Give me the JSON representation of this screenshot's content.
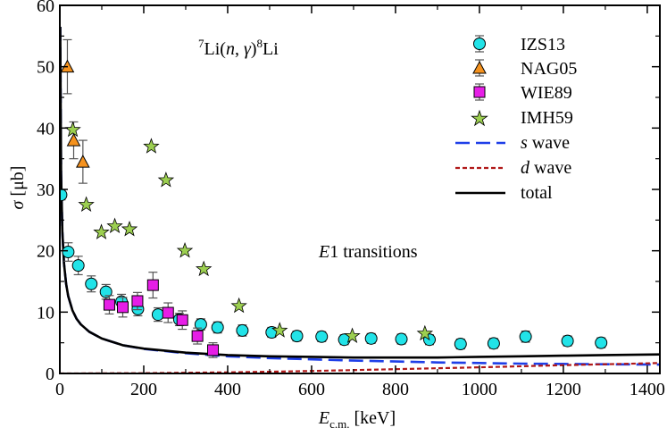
{
  "chart_data": {
    "type": "scatter",
    "title": "",
    "xlabel": {
      "main": "E",
      "sub": "c.m.",
      "unit": " [keV]"
    },
    "ylabel": {
      "main": "σ",
      "unit": " [μb]"
    },
    "xlim": [
      0,
      1430
    ],
    "ylim": [
      0,
      60
    ],
    "xticks": [
      0,
      200,
      400,
      600,
      800,
      1000,
      1200,
      1400
    ],
    "yticks": [
      0,
      10,
      20,
      30,
      40,
      50,
      60
    ],
    "grid": false,
    "legend_position": "top-right",
    "annotations": {
      "reaction": {
        "pre": "7",
        "a": "Li(",
        "n": "n",
        "b": ", ",
        "g": "γ",
        "c": ")",
        "post": "8",
        "d": "Li"
      },
      "transitions": {
        "e": "E",
        "rest": "1 transitions"
      }
    },
    "series": [
      {
        "name": "IZS13",
        "kind": "points",
        "marker": "circle",
        "color": "#22e3e8",
        "points": [
          {
            "x": 3,
            "y": 29.1,
            "err": 0.8
          },
          {
            "x": 20,
            "y": 19.8,
            "err": 1.5
          },
          {
            "x": 44,
            "y": 17.6,
            "err": 1.5
          },
          {
            "x": 75,
            "y": 14.6,
            "err": 1.3
          },
          {
            "x": 110,
            "y": 13.3,
            "err": 1.2
          },
          {
            "x": 147,
            "y": 11.7,
            "err": 1.2
          },
          {
            "x": 186,
            "y": 10.5,
            "err": 1.1
          },
          {
            "x": 234,
            "y": 9.6,
            "err": 1.1
          },
          {
            "x": 285,
            "y": 8.8,
            "err": 1.0
          },
          {
            "x": 336,
            "y": 8.0,
            "err": 0.9
          },
          {
            "x": 376,
            "y": 7.5,
            "err": 0.9
          },
          {
            "x": 435,
            "y": 7.0,
            "err": 0.9
          },
          {
            "x": 505,
            "y": 6.7,
            "err": 0.8
          },
          {
            "x": 565,
            "y": 6.1,
            "err": 0.8
          },
          {
            "x": 624,
            "y": 6.0,
            "err": 0.8
          },
          {
            "x": 678,
            "y": 5.5,
            "err": 0.8
          },
          {
            "x": 742,
            "y": 5.7,
            "err": 0.8
          },
          {
            "x": 814,
            "y": 5.6,
            "err": 0.8
          },
          {
            "x": 881,
            "y": 5.5,
            "err": 0.8
          },
          {
            "x": 955,
            "y": 4.8,
            "err": 0.8
          },
          {
            "x": 1034,
            "y": 4.9,
            "err": 0.8
          },
          {
            "x": 1110,
            "y": 6.0,
            "err": 0.9
          },
          {
            "x": 1210,
            "y": 5.3,
            "err": 0.8
          },
          {
            "x": 1290,
            "y": 5.0,
            "err": 0.8
          }
        ]
      },
      {
        "name": "NAG05",
        "kind": "points",
        "marker": "triangle",
        "color": "#f5921e",
        "points": [
          {
            "x": 18,
            "y": 50.0,
            "err": 4.4
          },
          {
            "x": 33,
            "y": 38.0,
            "err": 3.0
          },
          {
            "x": 55,
            "y": 34.5,
            "err": 3.5
          }
        ]
      },
      {
        "name": "WIE89",
        "kind": "points",
        "marker": "square",
        "color": "#e61ee6",
        "points": [
          {
            "x": 118,
            "y": 11.2,
            "err": 1.5
          },
          {
            "x": 150,
            "y": 10.8,
            "err": 1.6
          },
          {
            "x": 185,
            "y": 11.8,
            "err": 1.4
          },
          {
            "x": 222,
            "y": 14.4,
            "err": 2.1
          },
          {
            "x": 258,
            "y": 9.9,
            "err": 1.6
          },
          {
            "x": 292,
            "y": 8.7,
            "err": 1.5
          },
          {
            "x": 328,
            "y": 6.1,
            "err": 1.3
          },
          {
            "x": 365,
            "y": 3.8,
            "err": 1.2
          }
        ]
      },
      {
        "name": "IMH59",
        "kind": "points",
        "marker": "star",
        "color": "#9ccf50",
        "points": [
          {
            "x": 31,
            "y": 39.7
          },
          {
            "x": 63,
            "y": 27.5
          },
          {
            "x": 99,
            "y": 23.0
          },
          {
            "x": 131,
            "y": 24.0
          },
          {
            "x": 166,
            "y": 23.5
          },
          {
            "x": 218,
            "y": 37.0
          },
          {
            "x": 253,
            "y": 31.5
          },
          {
            "x": 298,
            "y": 20.0
          },
          {
            "x": 343,
            "y": 17.0
          },
          {
            "x": 427,
            "y": 11.0
          },
          {
            "x": 524,
            "y": 7.0
          },
          {
            "x": 697,
            "y": 6.1
          },
          {
            "x": 870,
            "y": 6.5
          }
        ]
      },
      {
        "name": {
          "s": "s",
          "rest": " wave"
        },
        "kind": "line",
        "color": "#1f3fe8",
        "dash": "16,7",
        "width": 2.6,
        "points": [
          {
            "x": 1,
            "y": 56.5
          },
          {
            "x": 3,
            "y": 32.6
          },
          {
            "x": 6,
            "y": 23.1
          },
          {
            "x": 10,
            "y": 17.9
          },
          {
            "x": 15,
            "y": 14.6
          },
          {
            "x": 20,
            "y": 12.6
          },
          {
            "x": 30,
            "y": 10.3
          },
          {
            "x": 40,
            "y": 8.9
          },
          {
            "x": 50,
            "y": 8.0
          },
          {
            "x": 70,
            "y": 6.8
          },
          {
            "x": 100,
            "y": 5.7
          },
          {
            "x": 150,
            "y": 4.6
          },
          {
            "x": 200,
            "y": 4.0
          },
          {
            "x": 300,
            "y": 3.3
          },
          {
            "x": 400,
            "y": 2.8
          },
          {
            "x": 500,
            "y": 2.5
          },
          {
            "x": 600,
            "y": 2.3
          },
          {
            "x": 700,
            "y": 2.1
          },
          {
            "x": 800,
            "y": 1.95
          },
          {
            "x": 900,
            "y": 1.8
          },
          {
            "x": 1000,
            "y": 1.7
          },
          {
            "x": 1100,
            "y": 1.6
          },
          {
            "x": 1200,
            "y": 1.55
          },
          {
            "x": 1300,
            "y": 1.5
          },
          {
            "x": 1430,
            "y": 1.45
          }
        ]
      },
      {
        "name": {
          "d": "d",
          "rest": " wave"
        },
        "kind": "line",
        "color": "#b01818",
        "dash": "5,3",
        "width": 2.2,
        "points": [
          {
            "x": 0,
            "y": 0
          },
          {
            "x": 200,
            "y": 0.05
          },
          {
            "x": 400,
            "y": 0.18
          },
          {
            "x": 600,
            "y": 0.4
          },
          {
            "x": 800,
            "y": 0.7
          },
          {
            "x": 1000,
            "y": 1.0
          },
          {
            "x": 1200,
            "y": 1.35
          },
          {
            "x": 1430,
            "y": 1.7
          }
        ]
      },
      {
        "name": "total",
        "kind": "line",
        "color": "#000000",
        "dash": "",
        "width": 2.6,
        "points": [
          {
            "x": 1,
            "y": 56.5
          },
          {
            "x": 3,
            "y": 32.6
          },
          {
            "x": 6,
            "y": 23.1
          },
          {
            "x": 10,
            "y": 17.9
          },
          {
            "x": 15,
            "y": 14.6
          },
          {
            "x": 20,
            "y": 12.6
          },
          {
            "x": 30,
            "y": 10.3
          },
          {
            "x": 40,
            "y": 8.9
          },
          {
            "x": 50,
            "y": 8.0
          },
          {
            "x": 70,
            "y": 6.8
          },
          {
            "x": 100,
            "y": 5.7
          },
          {
            "x": 150,
            "y": 4.6
          },
          {
            "x": 200,
            "y": 4.05
          },
          {
            "x": 300,
            "y": 3.4
          },
          {
            "x": 400,
            "y": 3.0
          },
          {
            "x": 500,
            "y": 2.8
          },
          {
            "x": 600,
            "y": 2.7
          },
          {
            "x": 700,
            "y": 2.6
          },
          {
            "x": 800,
            "y": 2.6
          },
          {
            "x": 900,
            "y": 2.6
          },
          {
            "x": 1000,
            "y": 2.7
          },
          {
            "x": 1100,
            "y": 2.8
          },
          {
            "x": 1200,
            "y": 2.9
          },
          {
            "x": 1300,
            "y": 3.0
          },
          {
            "x": 1430,
            "y": 3.1
          }
        ]
      }
    ]
  }
}
